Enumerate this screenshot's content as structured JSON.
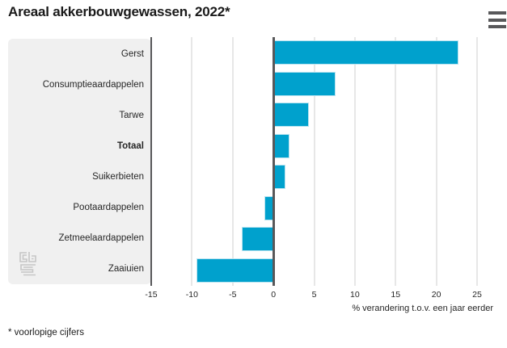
{
  "header": {
    "title": "Areaal akkerbouwgewassen, 2022*"
  },
  "menu": {
    "icon": "hamburger-icon"
  },
  "footnote": "* voorlopige cijfers",
  "colors": {
    "bar": "#00a1cd",
    "panel_bg": "#f0f0f0",
    "gridline": "#e7e7e7",
    "axis_line": "#58585a",
    "text": "#262626",
    "logo": "#c6c6c6"
  },
  "chart_data": {
    "type": "bar",
    "orientation": "horizontal",
    "title": "Areaal akkerbouwgewassen, 2022*",
    "categories": [
      "Gerst",
      "Consumptieaardappelen",
      "Tarwe",
      "Totaal",
      "Suikerbieten",
      "Pootaardappelen",
      "Zetmeelaardappelen",
      "Zaaiuien"
    ],
    "values": [
      22.7,
      7.6,
      4.4,
      2.0,
      1.5,
      -1.1,
      -3.9,
      -9.4
    ],
    "emphasized_category": "Totaal",
    "xlabel": "% verandering t.o.v. een jaar eerder",
    "ylabel": "",
    "xticks": [
      -15,
      -10,
      -5,
      0,
      5,
      10,
      15,
      20,
      25
    ],
    "xlim": [
      -15,
      25
    ],
    "grid": true,
    "legend": false,
    "bar_color": "#00a1cd"
  }
}
